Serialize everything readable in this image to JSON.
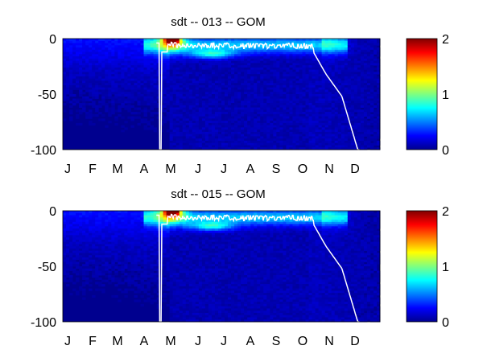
{
  "chart_data": [
    {
      "type": "heatmap",
      "title": "sdt -- 013 -- GOM",
      "xlabel": "",
      "ylabel": "",
      "x_tick_labels": [
        "J",
        "F",
        "M",
        "A",
        "M",
        "J",
        "J",
        "A",
        "S",
        "O",
        "N",
        "D"
      ],
      "y_ticks": [
        0,
        -50,
        -100
      ],
      "ylim": [
        -100,
        0
      ],
      "colorbar": {
        "ticks": [
          0,
          1,
          2
        ],
        "range": [
          0,
          2
        ],
        "colormap": "jet"
      },
      "mixed_layer_line_color": "#ffffff",
      "background_value": 0.05
    },
    {
      "type": "heatmap",
      "title": "sdt -- 015 -- GOM",
      "xlabel": "",
      "ylabel": "",
      "x_tick_labels": [
        "J",
        "F",
        "M",
        "A",
        "M",
        "J",
        "J",
        "A",
        "S",
        "O",
        "N",
        "D"
      ],
      "y_ticks": [
        0,
        -50,
        -100
      ],
      "ylim": [
        -100,
        0
      ],
      "colorbar": {
        "ticks": [
          0,
          1,
          2
        ],
        "range": [
          0,
          2
        ],
        "colormap": "jet"
      },
      "mixed_layer_line_color": "#ffffff",
      "background_value": 0.05
    }
  ]
}
